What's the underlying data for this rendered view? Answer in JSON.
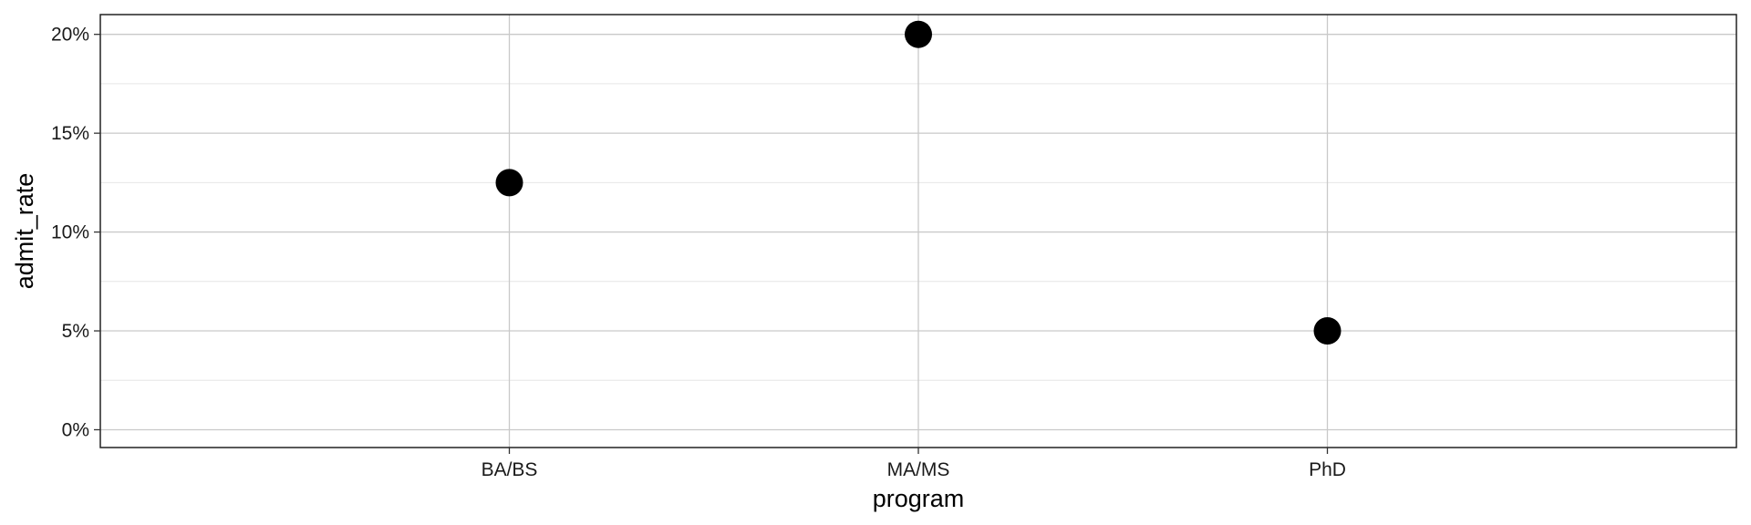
{
  "chart_data": {
    "type": "scatter",
    "title": "",
    "xlabel": "program",
    "ylabel": "admit_rate",
    "categories": [
      "BA/BS",
      "MA/MS",
      "PhD"
    ],
    "values": [
      0.125,
      0.2,
      0.05
    ],
    "y_ticks": [
      0,
      0.05,
      0.1,
      0.15,
      0.2
    ],
    "y_tick_labels": [
      "0%",
      "5%",
      "10%",
      "15%",
      "20%"
    ],
    "y_minor_ticks": [
      0.025,
      0.075,
      0.125,
      0.175
    ],
    "ylim": [
      -0.009,
      0.21
    ],
    "grid": true,
    "legend": "none",
    "point_color": "#000000"
  }
}
